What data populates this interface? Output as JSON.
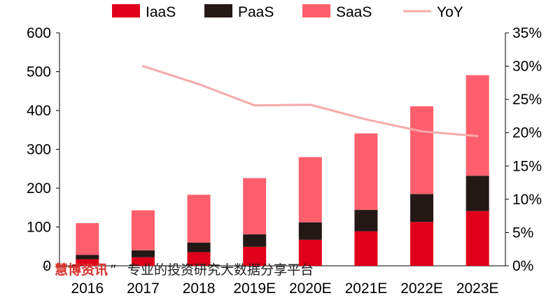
{
  "chart_data": {
    "type": "bar",
    "stacked": true,
    "categories": [
      "2016",
      "2017",
      "2018",
      "2019E",
      "2020E",
      "2021E",
      "2022E",
      "2023E"
    ],
    "series": [
      {
        "name": "IaaS",
        "type": "bar",
        "axis": "left",
        "color": "#e0001a",
        "values": [
          17,
          22,
          35,
          49,
          67,
          89,
          113,
          141
        ]
      },
      {
        "name": "PaaS",
        "type": "bar",
        "axis": "left",
        "color": "#231815",
        "values": [
          11,
          18,
          25,
          32,
          45,
          55,
          72,
          91
        ]
      },
      {
        "name": "SaaS",
        "type": "bar",
        "axis": "left",
        "color": "#ff5f6d",
        "values": [
          82,
          103,
          123,
          145,
          168,
          197,
          226,
          259
        ]
      },
      {
        "name": "YoY",
        "type": "line",
        "axis": "right",
        "color": "#f7a9a9",
        "values": [
          null,
          30.0,
          27.3,
          24.1,
          24.2,
          22.0,
          20.2,
          19.5
        ]
      }
    ],
    "legend": [
      "IaaS",
      "PaaS",
      "SaaS",
      "YoY"
    ],
    "legend_position": "top",
    "y_left": {
      "min": 0,
      "max": 600,
      "ticks": [
        "0",
        "100",
        "200",
        "300",
        "400",
        "500",
        "600"
      ]
    },
    "y_right": {
      "min": 0,
      "max": 35,
      "ticks": [
        "0%",
        "5%",
        "10%",
        "15%",
        "20%",
        "25%",
        "30%",
        "35%"
      ]
    },
    "title": "",
    "xlabel": "",
    "ylabel": "",
    "grid": false
  },
  "watermark": {
    "open_quote": "“",
    "brand": "慧博资讯",
    "close_quote": "”",
    "tagline": "专业的投资研究大数据分享平台"
  }
}
